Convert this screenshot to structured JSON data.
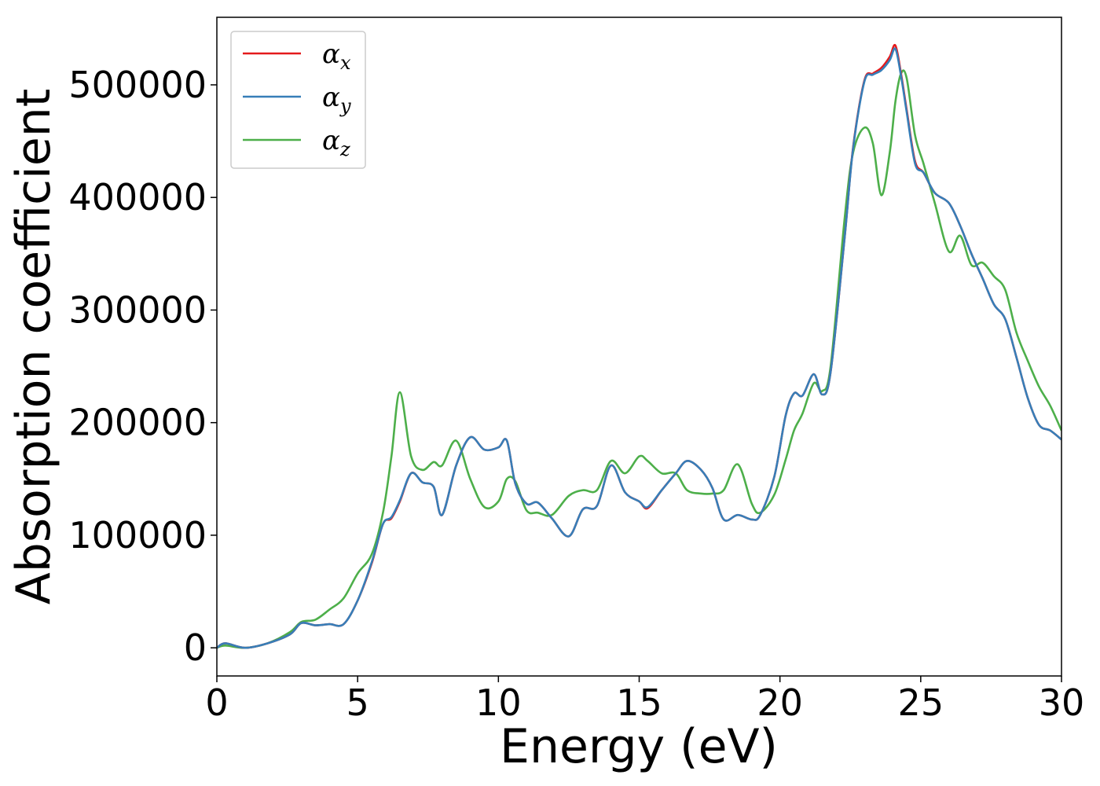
{
  "chart_data": {
    "type": "line",
    "xlabel": "Energy (eV)",
    "ylabel": "Absorption coefficient",
    "xlim": [
      0,
      30
    ],
    "ylim": [
      -25000,
      560000
    ],
    "x_ticks": [
      0,
      5,
      10,
      15,
      20,
      25,
      30
    ],
    "x_tick_labels": [
      "0",
      "5",
      "10",
      "15",
      "20",
      "25",
      "30"
    ],
    "y_ticks": [
      0,
      100000,
      200000,
      300000,
      400000,
      500000
    ],
    "y_tick_labels": [
      "0",
      "100000",
      "200000",
      "300000",
      "400000",
      "500000"
    ],
    "grid": false,
    "legend_position": "top-left",
    "x": [
      0,
      0.3,
      1.0,
      1.8,
      2.6,
      3.0,
      3.5,
      4.0,
      4.5,
      5.0,
      5.5,
      5.9,
      6.2,
      6.5,
      6.9,
      7.3,
      7.7,
      8.0,
      8.5,
      9.0,
      9.5,
      10.0,
      10.3,
      10.6,
      11.0,
      11.4,
      11.9,
      12.5,
      13.0,
      13.5,
      14.0,
      14.5,
      15.0,
      15.3,
      15.8,
      16.3,
      16.7,
      17.2,
      17.6,
      18.0,
      18.5,
      19.0,
      19.3,
      19.8,
      20.2,
      20.5,
      20.8,
      21.2,
      21.5,
      21.8,
      22.3,
      22.6,
      23.0,
      23.3,
      23.6,
      23.9,
      24.1,
      24.3,
      24.5,
      24.8,
      25.1,
      25.5,
      26.0,
      26.4,
      26.8,
      27.2,
      27.6,
      28.0,
      28.4,
      28.8,
      29.2,
      29.6,
      30.0
    ],
    "series": [
      {
        "name": "αx",
        "color": "#e41a1c",
        "values": [
          0,
          4000,
          0,
          4000,
          12000,
          22000,
          20000,
          21000,
          21000,
          42000,
          75000,
          110000,
          115000,
          130000,
          155000,
          147000,
          143000,
          118000,
          162000,
          187000,
          176000,
          178000,
          184000,
          146000,
          128000,
          129000,
          115000,
          99000,
          123000,
          126000,
          162000,
          138000,
          130000,
          124000,
          140000,
          155000,
          166000,
          158000,
          142000,
          114000,
          118000,
          114000,
          118000,
          152000,
          206000,
          226000,
          224000,
          243000,
          225000,
          245000,
          365000,
          445000,
          504000,
          510000,
          515000,
          525000,
          535000,
          510000,
          478000,
          432000,
          422000,
          404000,
          395000,
          375000,
          350000,
          328000,
          305000,
          292000,
          258000,
          222000,
          198000,
          193000,
          185000
        ]
      },
      {
        "name": "αy",
        "color": "#377eb8",
        "values": [
          0,
          4000,
          0,
          4000,
          12000,
          22000,
          20000,
          21000,
          21000,
          42000,
          76000,
          110000,
          116000,
          131000,
          155000,
          147000,
          143000,
          118000,
          162000,
          187000,
          176000,
          178000,
          184000,
          146000,
          128000,
          129000,
          115000,
          99000,
          123000,
          126000,
          162000,
          138000,
          130000,
          125000,
          140000,
          155000,
          166000,
          158000,
          142000,
          114000,
          118000,
          114000,
          118000,
          152000,
          206000,
          226000,
          224000,
          243000,
          225000,
          245000,
          365000,
          444000,
          503000,
          509000,
          513000,
          522000,
          532000,
          508000,
          476000,
          430000,
          422000,
          404000,
          395000,
          375000,
          350000,
          328000,
          305000,
          292000,
          258000,
          222000,
          198000,
          193000,
          185000
        ]
      },
      {
        "name": "αz",
        "color": "#4daf4a",
        "values": [
          0,
          2000,
          0,
          4000,
          14000,
          23000,
          25000,
          34000,
          44000,
          66000,
          83000,
          120000,
          170000,
          227000,
          170000,
          158000,
          165000,
          162000,
          184000,
          150000,
          125000,
          130000,
          150000,
          148000,
          122000,
          120000,
          118000,
          135000,
          140000,
          140000,
          166000,
          155000,
          170000,
          166000,
          155000,
          155000,
          140000,
          137000,
          137000,
          140000,
          163000,
          128000,
          120000,
          136000,
          167000,
          193000,
          208000,
          235000,
          228000,
          250000,
          382000,
          440000,
          462000,
          448000,
          402000,
          440000,
          485000,
          510000,
          506000,
          455000,
          430000,
          395000,
          352000,
          366000,
          340000,
          342000,
          330000,
          318000,
          280000,
          255000,
          232000,
          215000,
          193000
        ]
      }
    ]
  }
}
